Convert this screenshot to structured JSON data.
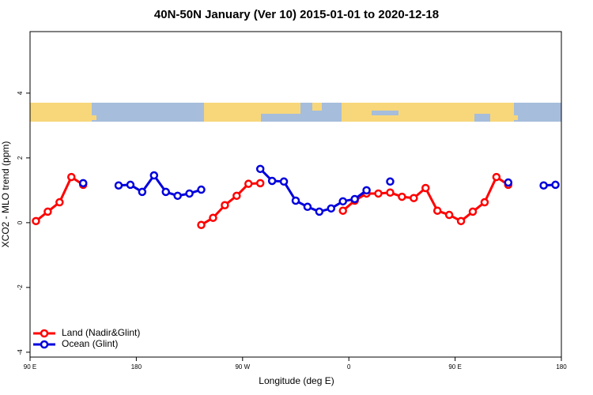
{
  "chart_data": {
    "type": "line",
    "title": "40N-50N January (Ver 10)   2015-01-01 to 2020-12-18",
    "x_label": "Longitude (deg E)",
    "y_label": "XCO2 - MLO trend (ppm)",
    "x": [
      95,
      105,
      115,
      125,
      135,
      145,
      155,
      165,
      175,
      185,
      195,
      205,
      215,
      225,
      235,
      245,
      255,
      265,
      275,
      285,
      295,
      305,
      315,
      325,
      335,
      345,
      355,
      365,
      375,
      385,
      395,
      405,
      415,
      425,
      435,
      445,
      455,
      465,
      475,
      485,
      495,
      505,
      515,
      525,
      535
    ],
    "series": [
      {
        "name": "Land (Nadir&Glint)",
        "color": "#ff0000",
        "values": [
          0.05,
          0.34,
          0.63,
          1.41,
          1.17,
          null,
          null,
          null,
          null,
          null,
          null,
          null,
          null,
          null,
          -0.07,
          0.15,
          0.54,
          0.83,
          1.2,
          1.22,
          null,
          null,
          null,
          null,
          null,
          null,
          0.37,
          0.68,
          0.9,
          0.9,
          0.93,
          0.8,
          0.76,
          1.07,
          0.37,
          0.24,
          0.05,
          0.34,
          0.63,
          1.41,
          1.17,
          null,
          null,
          null,
          null
        ]
      },
      {
        "name": "Ocean (Glint)",
        "color": "#0000dd",
        "values": [
          null,
          null,
          null,
          null,
          1.22,
          null,
          null,
          1.15,
          1.17,
          0.95,
          1.46,
          0.95,
          0.83,
          0.9,
          1.02,
          null,
          null,
          null,
          null,
          1.66,
          1.29,
          1.27,
          0.68,
          0.49,
          0.34,
          0.44,
          0.66,
          0.73,
          1.0,
          null,
          1.27,
          null,
          null,
          null,
          null,
          null,
          null,
          null,
          null,
          null,
          1.24,
          null,
          null,
          1.15,
          1.17
        ]
      }
    ],
    "xlim": [
      90,
      540
    ],
    "xticks": [
      {
        "value": 90,
        "label": "90 E"
      },
      180,
      {
        "value": 270,
        "label": "90 W"
      },
      {
        "value": 360,
        "label": "0"
      },
      {
        "value": 450,
        "label": "90 E"
      },
      {
        "value": 540,
        "label": "180"
      }
    ],
    "ylim": [
      -4.15,
      5.9
    ],
    "yticks": [
      -4,
      -2,
      0,
      2,
      4
    ],
    "legend": "bottom-left"
  }
}
